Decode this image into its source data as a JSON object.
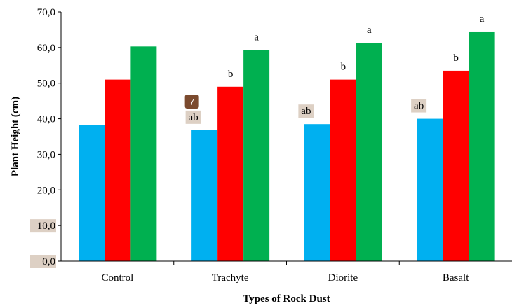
{
  "chart_data": {
    "type": "bar",
    "xlabel": "Types of Rock Dust",
    "ylabel": "Plant Height (cm)",
    "ylim": [
      0,
      70
    ],
    "yticks": [
      "0,0",
      "10,0",
      "20,0",
      "30,0",
      "40,0",
      "50,0",
      "60,0",
      "70,0"
    ],
    "categories": [
      "Control",
      "Trachyte",
      "Diorite",
      "Basalt"
    ],
    "grid": false,
    "series": [
      {
        "color": "#00b0f0",
        "values": [
          38.2,
          36.8,
          38.5,
          40.0
        ],
        "labels": [
          "",
          "ab",
          "ab",
          "ab"
        ]
      },
      {
        "color": "#ff0000",
        "values": [
          51.0,
          49.0,
          51.0,
          53.5
        ],
        "labels": [
          "",
          "b",
          "b",
          "b"
        ]
      },
      {
        "color": "#00b050",
        "values": [
          60.3,
          59.3,
          61.3,
          64.5
        ],
        "labels": [
          "",
          "a",
          "a",
          "a"
        ]
      }
    ],
    "label_highlight": "#ddd0c4",
    "badge": {
      "text": "7",
      "color": "#7b4a2e"
    }
  }
}
